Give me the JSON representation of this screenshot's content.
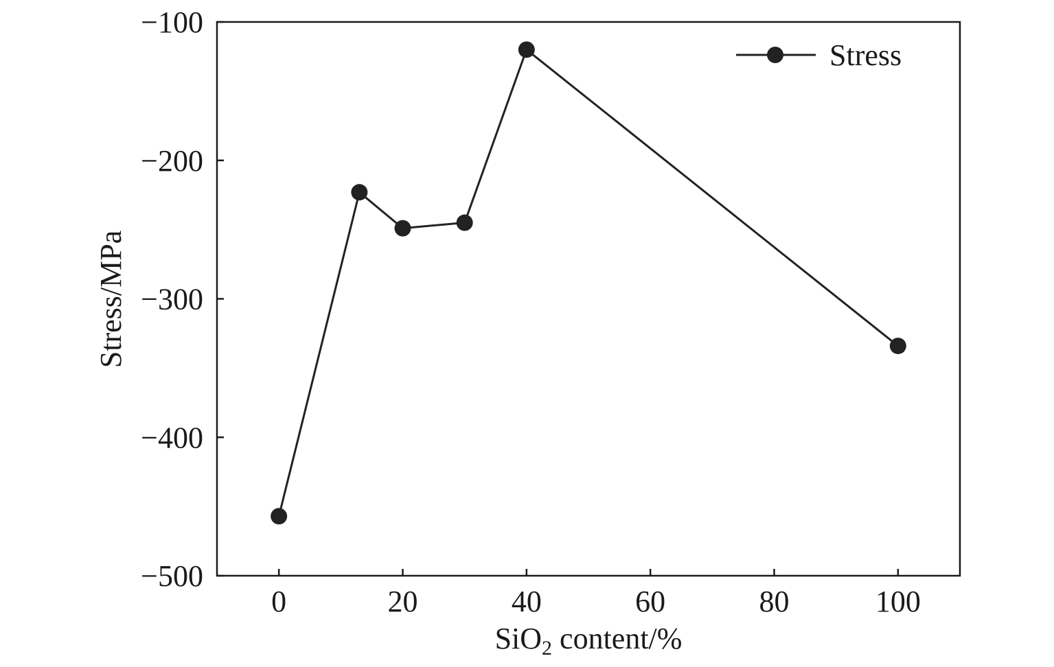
{
  "chart_data": {
    "type": "line",
    "xlabel": {
      "prefix": "SiO",
      "subscript": "2",
      "suffix": " content/%"
    },
    "ylabel": "Stress/MPa",
    "xlim": [
      -10,
      110
    ],
    "ylim": [
      -500,
      -100
    ],
    "x_ticks": [
      0,
      20,
      40,
      60,
      80,
      100
    ],
    "x_tick_labels": [
      "0",
      "20",
      "40",
      "60",
      "80",
      "100"
    ],
    "y_ticks": [
      -100,
      -200,
      -300,
      -400,
      -500
    ],
    "y_tick_labels": [
      "−100",
      "−200",
      "−300",
      "−400",
      "−500"
    ],
    "grid": false,
    "legend_position": "top-right",
    "series": [
      {
        "name": "Stress",
        "color": "#222222",
        "marker": "circle",
        "x": [
          0,
          13,
          20,
          30,
          40,
          100
        ],
        "y": [
          -457,
          -223,
          -249,
          -245,
          -120,
          -334
        ]
      }
    ]
  }
}
